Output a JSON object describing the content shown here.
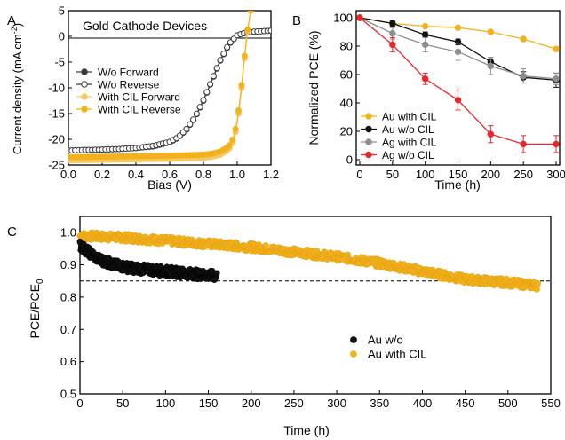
{
  "colors": {
    "gold": "#f3b11e",
    "gold_light": "#f6c860",
    "dark": "#3a3a3a",
    "black": "#111111",
    "gray": "#8e8e8e",
    "red": "#e8262b",
    "axis": "#000000"
  },
  "chart_data": [
    {
      "panel": "A",
      "type": "line",
      "title": "Gold Cathode Devices",
      "xlabel": "Bias (V)",
      "ylabel_main": "Current density (mA cm",
      "ylabel_sup": "-2",
      "ylabel_close": ")",
      "xlim": [
        0.0,
        1.2
      ],
      "ylim": [
        -25,
        5
      ],
      "xticks": [
        "0.0",
        "0.2",
        "0.4",
        "0.6",
        "0.8",
        "1.0",
        "1.2"
      ],
      "xtick_values": [
        0.0,
        0.2,
        0.4,
        0.6,
        0.8,
        1.0,
        1.2
      ],
      "yticks": [
        "-25",
        "-20",
        "-15",
        "-10",
        "-5",
        "0",
        "5"
      ],
      "ytick_values": [
        -25,
        -20,
        -15,
        -10,
        -5,
        0,
        5
      ],
      "legend_position": "left",
      "series": [
        {
          "name": "W/o Forward",
          "color_key": "dark",
          "style": "filled",
          "x": [
            0.0,
            0.1,
            0.2,
            0.3,
            0.4,
            0.5,
            0.6,
            0.65,
            0.7,
            0.75,
            0.8,
            0.85,
            0.9,
            0.95,
            1.0,
            1.05,
            1.1,
            1.15,
            1.2
          ],
          "y": [
            -22.2,
            -22.1,
            -22.0,
            -21.9,
            -21.7,
            -21.4,
            -20.6,
            -19.7,
            -18.1,
            -15.8,
            -12.5,
            -8.6,
            -4.7,
            -1.6,
            0.2,
            0.7,
            0.9,
            1.0,
            1.1
          ]
        },
        {
          "name": "W/o Reverse",
          "color_key": "dark",
          "style": "hollow",
          "x": [
            0.0,
            0.1,
            0.2,
            0.3,
            0.4,
            0.5,
            0.6,
            0.65,
            0.7,
            0.75,
            0.8,
            0.85,
            0.9,
            0.95,
            1.0,
            1.05,
            1.1,
            1.15,
            1.2
          ],
          "y": [
            -22.2,
            -22.1,
            -22.0,
            -21.9,
            -21.7,
            -21.3,
            -20.5,
            -19.6,
            -18.0,
            -15.7,
            -12.4,
            -8.5,
            -4.6,
            -1.5,
            0.2,
            0.7,
            0.9,
            1.0,
            1.1
          ]
        },
        {
          "name": "With CIL Forward",
          "color_key": "gold_light",
          "style": "filled",
          "x": [
            0.0,
            0.2,
            0.4,
            0.6,
            0.8,
            0.85,
            0.9,
            0.95,
            0.98,
            1.0,
            1.02,
            1.04,
            1.06,
            1.08
          ],
          "y": [
            -24.1,
            -24.0,
            -23.9,
            -23.8,
            -23.6,
            -23.4,
            -23.0,
            -22.0,
            -20.2,
            -17.0,
            -12.0,
            -5.5,
            0.5,
            5.0
          ]
        },
        {
          "name": "With CIL Reverse",
          "color_key": "gold",
          "style": "filled",
          "x": [
            0.0,
            0.2,
            0.4,
            0.6,
            0.8,
            0.85,
            0.9,
            0.95,
            0.98,
            1.0,
            1.02,
            1.04,
            1.06,
            1.08
          ],
          "y": [
            -23.5,
            -23.4,
            -23.3,
            -23.2,
            -23.0,
            -22.8,
            -22.4,
            -21.4,
            -19.6,
            -16.4,
            -11.4,
            -5.0,
            0.9,
            5.0
          ]
        }
      ]
    },
    {
      "panel": "B",
      "type": "line",
      "xlabel": "Time (h)",
      "ylabel": "Normalized PCE (%)",
      "xlim": [
        0,
        300
      ],
      "ylim": [
        0,
        100
      ],
      "xticks": [
        "0",
        "50",
        "100",
        "150",
        "200",
        "250",
        "300"
      ],
      "xtick_values": [
        0,
        50,
        100,
        150,
        200,
        250,
        300
      ],
      "yticks": [
        "0",
        "20",
        "40",
        "60",
        "80",
        "100"
      ],
      "ytick_values": [
        0,
        20,
        40,
        60,
        80,
        100
      ],
      "legend_position": "bottom-left",
      "x": [
        0,
        50,
        100,
        150,
        200,
        250,
        300
      ],
      "series": [
        {
          "name": "Au with CIL",
          "color_key": "gold",
          "values": [
            100,
            96,
            94,
            93,
            90,
            85,
            78
          ],
          "errors": [
            0,
            0,
            0,
            0,
            0,
            0,
            0
          ]
        },
        {
          "name": "Au w/o CIL",
          "color_key": "black",
          "values": [
            100,
            96,
            88,
            83,
            69,
            58,
            56
          ],
          "errors": [
            1,
            2,
            2,
            2,
            3,
            4,
            5
          ]
        },
        {
          "name": "Ag with CIL",
          "color_key": "gray",
          "values": [
            100,
            89,
            81,
            76,
            66,
            59,
            57
          ],
          "errors": [
            1,
            4,
            5,
            6,
            6,
            5,
            4
          ]
        },
        {
          "name": "Ag w/o CIL",
          "color_key": "red",
          "values": [
            100,
            81,
            57,
            42,
            18,
            11,
            11
          ],
          "errors": [
            1,
            5,
            4,
            7,
            6,
            6,
            6
          ]
        }
      ]
    },
    {
      "panel": "C",
      "type": "scatter",
      "xlabel": "Time (h)",
      "ylabel_main": "PCE/PCE",
      "ylabel_sub": "0",
      "xlim": [
        0,
        550
      ],
      "ylim": [
        0.5,
        1.05
      ],
      "xticks": [
        "0",
        "50",
        "100",
        "150",
        "200",
        "250",
        "300",
        "350",
        "400",
        "450",
        "500",
        "550"
      ],
      "xtick_values": [
        0,
        50,
        100,
        150,
        200,
        250,
        300,
        350,
        400,
        450,
        500,
        550
      ],
      "yticks": [
        "0.5",
        "0.6",
        "0.7",
        "0.8",
        "0.9",
        "1.0"
      ],
      "ytick_values": [
        0.5,
        0.6,
        0.7,
        0.8,
        0.9,
        1.0
      ],
      "reference_line": 0.85,
      "legend_position": "center-right",
      "series": [
        {
          "name": "Au w/o",
          "color_key": "black",
          "x": [
            0,
            10,
            20,
            30,
            40,
            60,
            80,
            100,
            120,
            140,
            160
          ],
          "y": [
            0.96,
            0.94,
            0.92,
            0.91,
            0.9,
            0.89,
            0.885,
            0.88,
            0.875,
            0.87,
            0.865
          ]
        },
        {
          "name": "Au with CIL",
          "color_key": "gold",
          "x": [
            0,
            50,
            100,
            150,
            200,
            250,
            300,
            350,
            400,
            450,
            500,
            535
          ],
          "y": [
            0.99,
            0.985,
            0.975,
            0.965,
            0.955,
            0.94,
            0.925,
            0.905,
            0.88,
            0.855,
            0.845,
            0.835
          ]
        }
      ]
    }
  ]
}
